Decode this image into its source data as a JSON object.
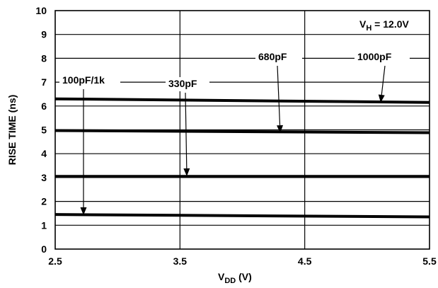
{
  "chart_data": {
    "type": "line",
    "title": "",
    "xlabel": {
      "main": "V",
      "sub": "DD",
      "unit": " (V)"
    },
    "ylabel": "RISE TIME (ns)",
    "xlim": [
      2.5,
      5.5
    ],
    "ylim": [
      0,
      10
    ],
    "x_ticks": [
      2.5,
      3.5,
      4.5,
      5.5
    ],
    "x_tick_labels": [
      "2.5",
      "3.5",
      "4.5",
      "5.5"
    ],
    "y_ticks": [
      0,
      1,
      2,
      3,
      4,
      5,
      6,
      7,
      8,
      9,
      10
    ],
    "y_tick_labels": [
      "0",
      "1",
      "2",
      "3",
      "4",
      "5",
      "6",
      "7",
      "8",
      "9",
      "10"
    ],
    "grid": true,
    "condition": {
      "main": "V",
      "sub": "H",
      "rest": " = 12.0V"
    },
    "series": [
      {
        "name": "100pF/1k",
        "x": [
          2.5,
          5.5
        ],
        "y": [
          1.45,
          1.35
        ]
      },
      {
        "name": "330pF",
        "x": [
          2.5,
          5.5
        ],
        "y": [
          3.05,
          3.05
        ]
      },
      {
        "name": "680pF",
        "x": [
          2.5,
          5.5
        ],
        "y": [
          4.97,
          4.88
        ]
      },
      {
        "name": "1000pF",
        "x": [
          2.5,
          5.5
        ],
        "y": [
          6.3,
          6.15
        ]
      }
    ]
  }
}
